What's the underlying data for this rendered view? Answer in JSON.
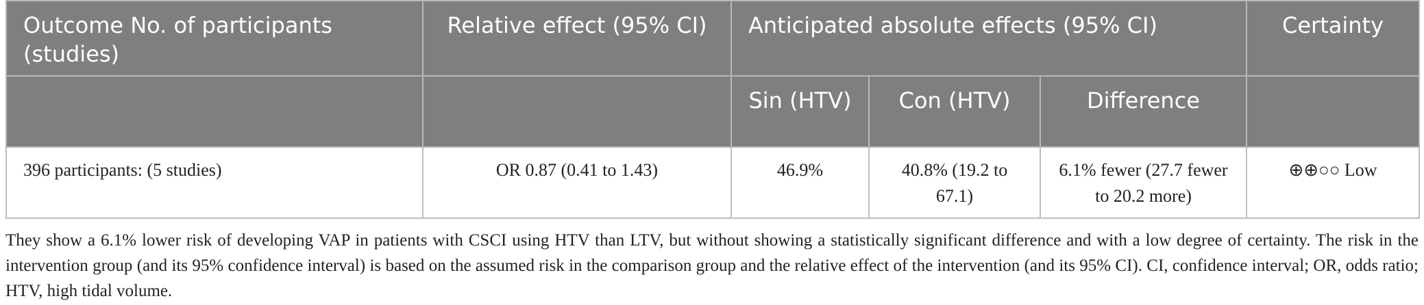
{
  "table": {
    "header_row1": {
      "outcome": "Outcome No. of participants (studies)",
      "relative_effect": "Relative effect (95% CI)",
      "anticipated": "Anticipated absolute effects (95% CI)",
      "certainty": "Certainty"
    },
    "header_row2": {
      "sin": "Sin (HTV)",
      "con": "Con (HTV)",
      "difference": "Difference"
    },
    "rows": [
      {
        "outcome": "396 participants: (5 studies)",
        "relative_effect": "OR 0.87 (0.41 to 1.43)",
        "sin": "46.9%",
        "con": "40.8% (19.2 to 67.1)",
        "difference": "6.1% fewer (27.7 fewer to 20.2 more)",
        "certainty": "⊕⊕○○ Low"
      }
    ]
  },
  "footnote": "They show a 6.1% lower risk of developing VAP in patients with CSCI using HTV than LTV, but without showing a statistically significant difference and with a low degree of certainty. The risk in the intervention group (and its 95% confidence interval) is based on the assumed risk in the comparison group and the relative effect of the intervention (and its 95% CI). CI, confidence interval; OR, odds ratio; HTV, high tidal volume.",
  "colors": {
    "header_bg": "#7f7f7f",
    "header_text": "#ffffff",
    "border": "#bdbdbd"
  }
}
